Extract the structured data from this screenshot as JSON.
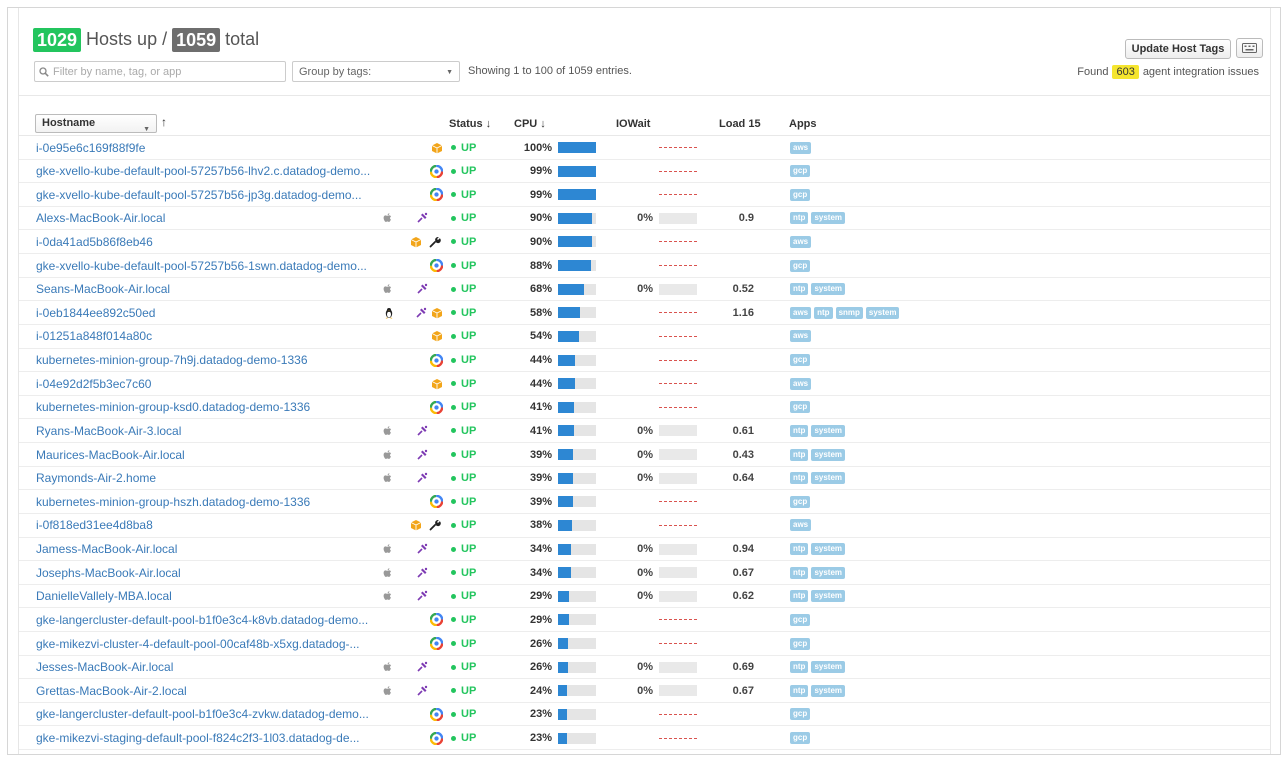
{
  "header": {
    "hosts_up": "1029",
    "hosts_up_label": "Hosts up /",
    "hosts_total": "1059",
    "total_label": "total",
    "filter_placeholder": "Filter by name, tag, or app",
    "group_by_label": "Group by tags:",
    "showing": "Showing 1 to 100 of 1059 entries.",
    "update_tags_label": "Update Host Tags",
    "found_prefix": "Found",
    "issues_count": "603",
    "found_suffix": "agent integration issues"
  },
  "columns": {
    "hostname": "Hostname",
    "status": "Status ↓",
    "cpu": "CPU ↓",
    "iowait": "IOWait",
    "load15": "Load 15",
    "apps": "Apps"
  },
  "colors": {
    "up": "#23c55e",
    "total": "#6e6e6e",
    "cpu_bar": "#2d87d3",
    "link": "#3a7ab8",
    "tag": "#9bcbe6",
    "issues_highlight": "#f5e52e"
  },
  "rows": [
    {
      "host": "i-0e95e6c169f88f9fe",
      "icons": [
        "aws-icon"
      ],
      "status": "UP",
      "cpu": "100%",
      "cpu_pct": 100,
      "iowait": "",
      "load": "",
      "apps": [
        "aws"
      ]
    },
    {
      "host": "gke-xvello-kube-default-pool-57257b56-lhv2.c.datadog-demo...",
      "icons": [
        "gcp-icon"
      ],
      "status": "UP",
      "cpu": "99%",
      "cpu_pct": 99,
      "iowait": "",
      "load": "",
      "apps": [
        "gcp"
      ]
    },
    {
      "host": "gke-xvello-kube-default-pool-57257b56-jp3g.datadog-demo...",
      "icons": [
        "gcp-icon"
      ],
      "status": "UP",
      "cpu": "99%",
      "cpu_pct": 99,
      "iowait": "",
      "load": "",
      "apps": [
        "gcp"
      ]
    },
    {
      "host": "Alexs-MacBook-Air.local",
      "icons": [
        "apple-icon",
        "agent-icon"
      ],
      "status": "UP",
      "cpu": "90%",
      "cpu_pct": 90,
      "iowait": "0%",
      "load": "0.9",
      "apps": [
        "ntp",
        "system"
      ]
    },
    {
      "host": "i-0da41ad5b86f8eb46",
      "icons": [
        "aws-icon",
        "wrench-icon"
      ],
      "status": "UP",
      "cpu": "90%",
      "cpu_pct": 90,
      "iowait": "",
      "load": "",
      "apps": [
        "aws"
      ]
    },
    {
      "host": "gke-xvello-kube-default-pool-57257b56-1swn.datadog-demo...",
      "icons": [
        "gcp-icon"
      ],
      "status": "UP",
      "cpu": "88%",
      "cpu_pct": 88,
      "iowait": "",
      "load": "",
      "apps": [
        "gcp"
      ]
    },
    {
      "host": "Seans-MacBook-Air.local",
      "icons": [
        "apple-icon",
        "agent-icon"
      ],
      "status": "UP",
      "cpu": "68%",
      "cpu_pct": 68,
      "iowait": "0%",
      "load": "0.52",
      "apps": [
        "ntp",
        "system"
      ]
    },
    {
      "host": "i-0eb1844ee892c50ed",
      "icons": [
        "linux-icon",
        "agent-icon",
        "aws-icon"
      ],
      "status": "UP",
      "cpu": "58%",
      "cpu_pct": 58,
      "iowait": "",
      "load": "1.16",
      "apps": [
        "aws",
        "ntp",
        "snmp",
        "system"
      ]
    },
    {
      "host": "i-01251a848f014a80c",
      "icons": [
        "aws-icon"
      ],
      "status": "UP",
      "cpu": "54%",
      "cpu_pct": 54,
      "iowait": "",
      "load": "",
      "apps": [
        "aws"
      ]
    },
    {
      "host": "kubernetes-minion-group-7h9j.datadog-demo-1336",
      "icons": [
        "gcp-icon"
      ],
      "status": "UP",
      "cpu": "44%",
      "cpu_pct": 44,
      "iowait": "",
      "load": "",
      "apps": [
        "gcp"
      ]
    },
    {
      "host": "i-04e92d2f5b3ec7c60",
      "icons": [
        "aws-icon"
      ],
      "status": "UP",
      "cpu": "44%",
      "cpu_pct": 44,
      "iowait": "",
      "load": "",
      "apps": [
        "aws"
      ]
    },
    {
      "host": "kubernetes-minion-group-ksd0.datadog-demo-1336",
      "icons": [
        "gcp-icon"
      ],
      "status": "UP",
      "cpu": "41%",
      "cpu_pct": 41,
      "iowait": "",
      "load": "",
      "apps": [
        "gcp"
      ]
    },
    {
      "host": "Ryans-MacBook-Air-3.local",
      "icons": [
        "apple-icon",
        "agent-icon"
      ],
      "status": "UP",
      "cpu": "41%",
      "cpu_pct": 41,
      "iowait": "0%",
      "load": "0.61",
      "apps": [
        "ntp",
        "system"
      ]
    },
    {
      "host": "Maurices-MacBook-Air.local",
      "icons": [
        "apple-icon",
        "agent-icon"
      ],
      "status": "UP",
      "cpu": "39%",
      "cpu_pct": 39,
      "iowait": "0%",
      "load": "0.43",
      "apps": [
        "ntp",
        "system"
      ]
    },
    {
      "host": "Raymonds-Air-2.home",
      "icons": [
        "apple-icon",
        "agent-icon"
      ],
      "status": "UP",
      "cpu": "39%",
      "cpu_pct": 39,
      "iowait": "0%",
      "load": "0.64",
      "apps": [
        "ntp",
        "system"
      ]
    },
    {
      "host": "kubernetes-minion-group-hszh.datadog-demo-1336",
      "icons": [
        "gcp-icon"
      ],
      "status": "UP",
      "cpu": "39%",
      "cpu_pct": 39,
      "iowait": "",
      "load": "",
      "apps": [
        "gcp"
      ]
    },
    {
      "host": "i-0f818ed31ee4d8ba8",
      "icons": [
        "aws-icon",
        "wrench-icon"
      ],
      "status": "UP",
      "cpu": "38%",
      "cpu_pct": 38,
      "iowait": "",
      "load": "",
      "apps": [
        "aws"
      ]
    },
    {
      "host": "Jamess-MacBook-Air.local",
      "icons": [
        "apple-icon",
        "agent-icon"
      ],
      "status": "UP",
      "cpu": "34%",
      "cpu_pct": 34,
      "iowait": "0%",
      "load": "0.94",
      "apps": [
        "ntp",
        "system"
      ]
    },
    {
      "host": "Josephs-MacBook-Air.local",
      "icons": [
        "apple-icon",
        "agent-icon"
      ],
      "status": "UP",
      "cpu": "34%",
      "cpu_pct": 34,
      "iowait": "0%",
      "load": "0.67",
      "apps": [
        "ntp",
        "system"
      ]
    },
    {
      "host": "DanielleVallely-MBA.local",
      "icons": [
        "apple-icon",
        "agent-icon"
      ],
      "status": "UP",
      "cpu": "29%",
      "cpu_pct": 29,
      "iowait": "0%",
      "load": "0.62",
      "apps": [
        "ntp",
        "system"
      ]
    },
    {
      "host": "gke-langercluster-default-pool-b1f0e3c4-k8vb.datadog-demo...",
      "icons": [
        "gcp-icon"
      ],
      "status": "UP",
      "cpu": "29%",
      "cpu_pct": 29,
      "iowait": "",
      "load": "",
      "apps": [
        "gcp"
      ]
    },
    {
      "host": "gke-mikezvi-cluster-4-default-pool-00caf48b-x5xg.datadog-...",
      "icons": [
        "gcp-icon"
      ],
      "status": "UP",
      "cpu": "26%",
      "cpu_pct": 26,
      "iowait": "",
      "load": "",
      "apps": [
        "gcp"
      ]
    },
    {
      "host": "Jesses-MacBook-Air.local",
      "icons": [
        "apple-icon",
        "agent-icon"
      ],
      "status": "UP",
      "cpu": "26%",
      "cpu_pct": 26,
      "iowait": "0%",
      "load": "0.69",
      "apps": [
        "ntp",
        "system"
      ]
    },
    {
      "host": "Grettas-MacBook-Air-2.local",
      "icons": [
        "apple-icon",
        "agent-icon"
      ],
      "status": "UP",
      "cpu": "24%",
      "cpu_pct": 24,
      "iowait": "0%",
      "load": "0.67",
      "apps": [
        "ntp",
        "system"
      ]
    },
    {
      "host": "gke-langercluster-default-pool-b1f0e3c4-zvkw.datadog-demo...",
      "icons": [
        "gcp-icon"
      ],
      "status": "UP",
      "cpu": "23%",
      "cpu_pct": 23,
      "iowait": "",
      "load": "",
      "apps": [
        "gcp"
      ]
    },
    {
      "host": "gke-mikezvi-staging-default-pool-f824c2f3-1l03.datadog-de...",
      "icons": [
        "gcp-icon"
      ],
      "status": "UP",
      "cpu": "23%",
      "cpu_pct": 23,
      "iowait": "",
      "load": "",
      "apps": [
        "gcp"
      ]
    }
  ]
}
